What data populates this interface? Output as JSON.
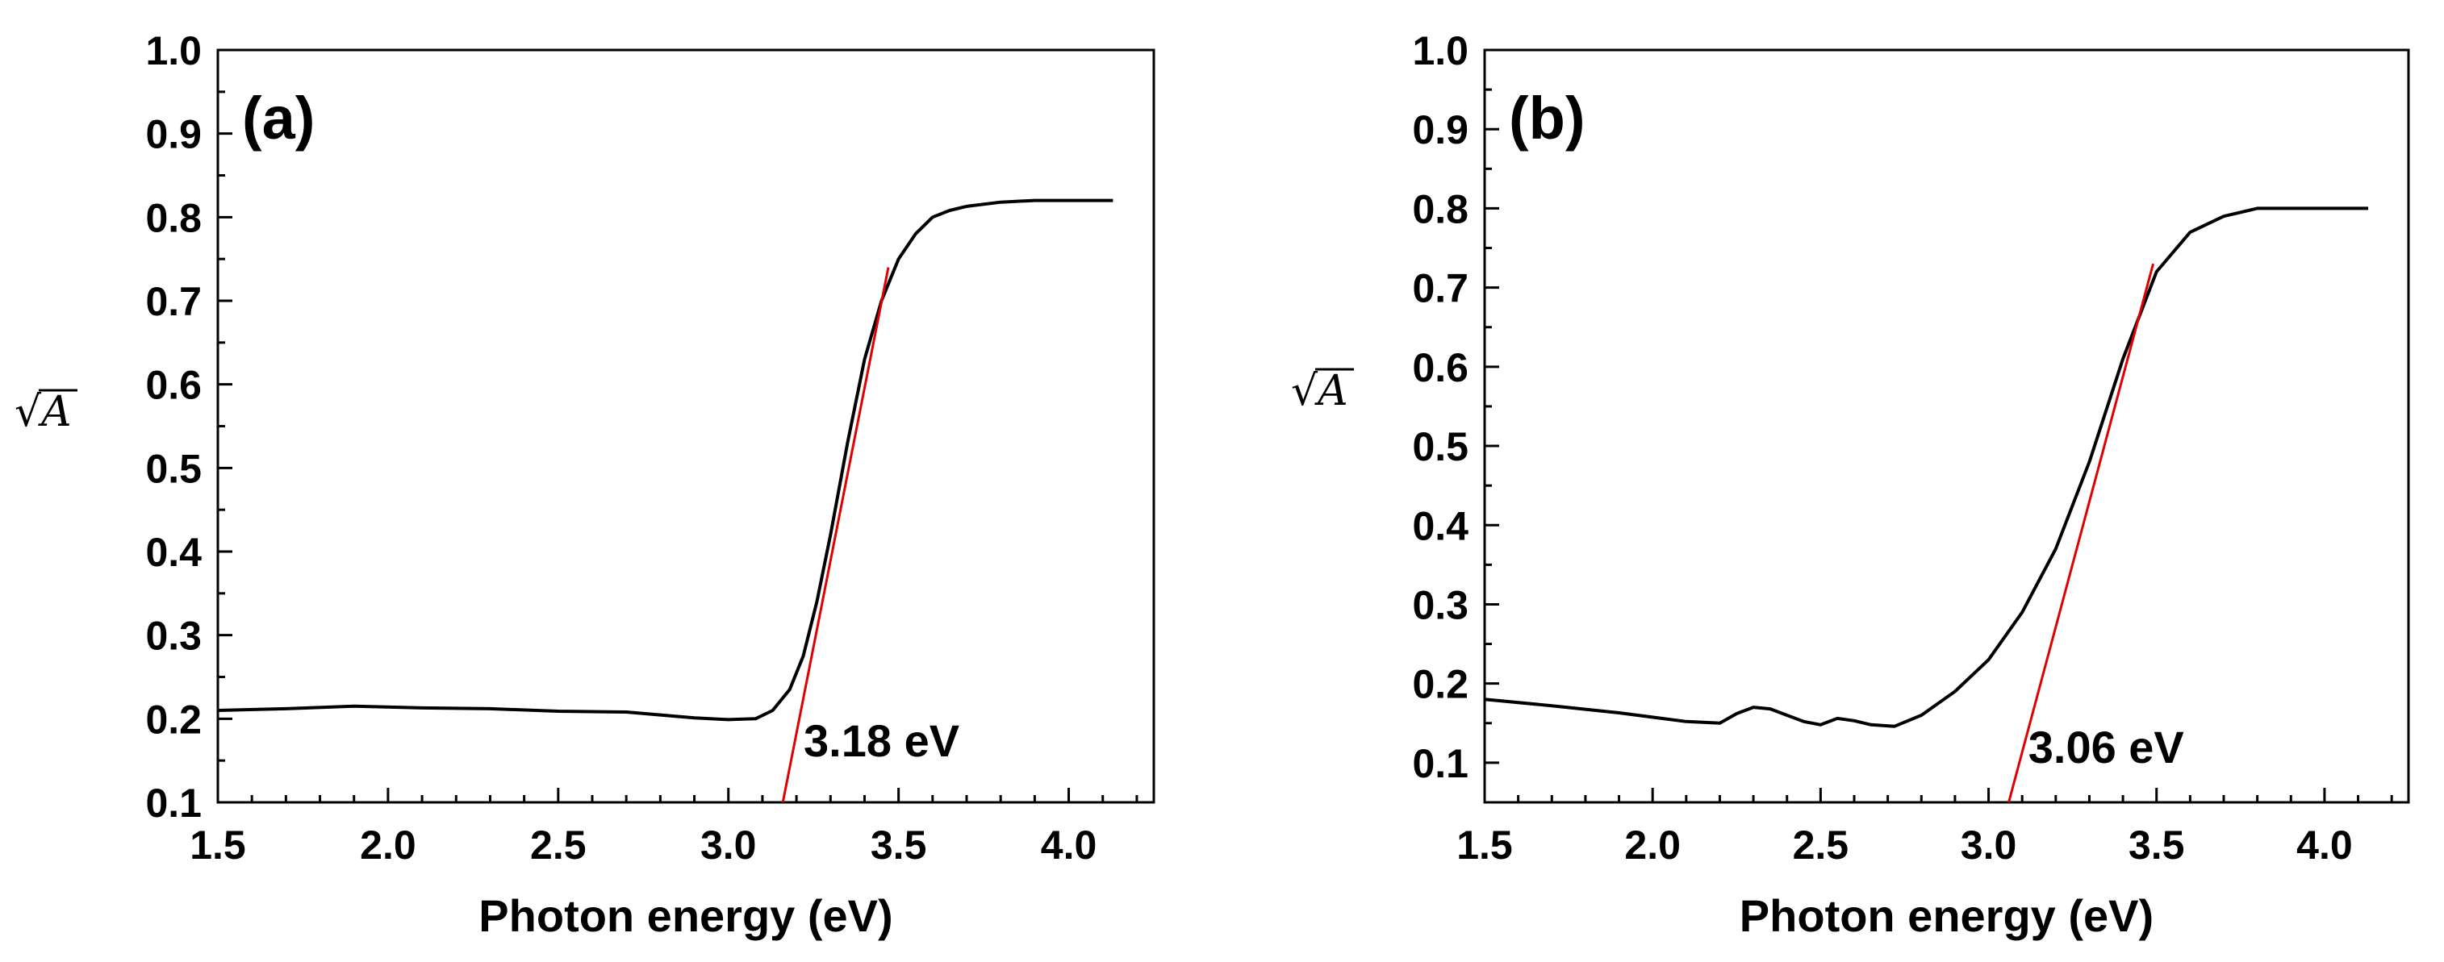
{
  "chart_data": [
    {
      "type": "line",
      "panel": "(a)",
      "xlabel": "Photon energy (eV)",
      "ylabel_root": "√",
      "ylabel_var": "A",
      "xlim": [
        1.5,
        4.25
      ],
      "ylim": [
        0.1,
        1.0
      ],
      "xticks": [
        1.5,
        2.0,
        2.5,
        3.0,
        3.5,
        4.0
      ],
      "xtick_labels": [
        "1.5",
        "2.0",
        "2.5",
        "3.0",
        "3.5",
        "4.0"
      ],
      "yticks": [
        0.1,
        0.2,
        0.3,
        0.4,
        0.5,
        0.6,
        0.7,
        0.8,
        0.9,
        1.0
      ],
      "ytick_labels": [
        "0.1",
        "0.2",
        "0.3",
        "0.4",
        "0.5",
        "0.6",
        "0.7",
        "0.8",
        "0.9",
        "1.0"
      ],
      "series": [
        {
          "name": "sqrt(A)",
          "color": "#000000",
          "x": [
            1.5,
            1.7,
            1.9,
            2.1,
            2.3,
            2.5,
            2.7,
            2.9,
            3.0,
            3.08,
            3.13,
            3.18,
            3.22,
            3.26,
            3.3,
            3.35,
            3.4,
            3.45,
            3.5,
            3.55,
            3.6,
            3.65,
            3.7,
            3.8,
            3.9,
            4.0,
            4.13
          ],
          "y": [
            0.21,
            0.212,
            0.215,
            0.213,
            0.212,
            0.209,
            0.208,
            0.201,
            0.199,
            0.2,
            0.21,
            0.235,
            0.275,
            0.34,
            0.42,
            0.53,
            0.63,
            0.7,
            0.75,
            0.78,
            0.8,
            0.808,
            0.813,
            0.818,
            0.82,
            0.82,
            0.82
          ]
        }
      ],
      "fit_line": {
        "color": "#e00000",
        "x": [
          3.16,
          3.47
        ],
        "y": [
          0.1,
          0.74
        ]
      },
      "annotation": "3.18 eV",
      "annotation_pos": [
        3.45,
        0.155
      ]
    },
    {
      "type": "line",
      "panel": "(b)",
      "xlabel": "Photon energy (eV)",
      "ylabel_root": "√",
      "ylabel_var": "A",
      "xlim": [
        1.5,
        4.25
      ],
      "ylim": [
        0.05,
        1.0
      ],
      "xticks": [
        1.5,
        2.0,
        2.5,
        3.0,
        3.5,
        4.0
      ],
      "xtick_labels": [
        "1.5",
        "2.0",
        "2.5",
        "3.0",
        "3.5",
        "4.0"
      ],
      "yticks": [
        0.1,
        0.2,
        0.3,
        0.4,
        0.5,
        0.6,
        0.7,
        0.8,
        0.9,
        1.0
      ],
      "ytick_labels": [
        "0.1",
        "0.2",
        "0.3",
        "0.4",
        "0.5",
        "0.6",
        "0.7",
        "0.8",
        "0.9",
        "1.0"
      ],
      "series": [
        {
          "name": "sqrt(A)",
          "color": "#000000",
          "x": [
            1.5,
            1.7,
            1.9,
            2.1,
            2.2,
            2.25,
            2.3,
            2.35,
            2.4,
            2.45,
            2.5,
            2.55,
            2.6,
            2.65,
            2.72,
            2.8,
            2.9,
            3.0,
            3.1,
            3.2,
            3.3,
            3.4,
            3.5,
            3.6,
            3.7,
            3.8,
            3.9,
            4.0,
            4.13
          ],
          "y": [
            0.18,
            0.172,
            0.163,
            0.152,
            0.15,
            0.162,
            0.17,
            0.168,
            0.16,
            0.152,
            0.148,
            0.156,
            0.153,
            0.148,
            0.146,
            0.16,
            0.19,
            0.23,
            0.29,
            0.37,
            0.48,
            0.61,
            0.72,
            0.77,
            0.79,
            0.8,
            0.8,
            0.8,
            0.8
          ]
        }
      ],
      "fit_line": {
        "color": "#e00000",
        "x": [
          3.06,
          3.49
        ],
        "y": [
          0.05,
          0.73
        ]
      },
      "annotation": "3.06 eV",
      "annotation_pos": [
        3.35,
        0.1
      ]
    }
  ]
}
